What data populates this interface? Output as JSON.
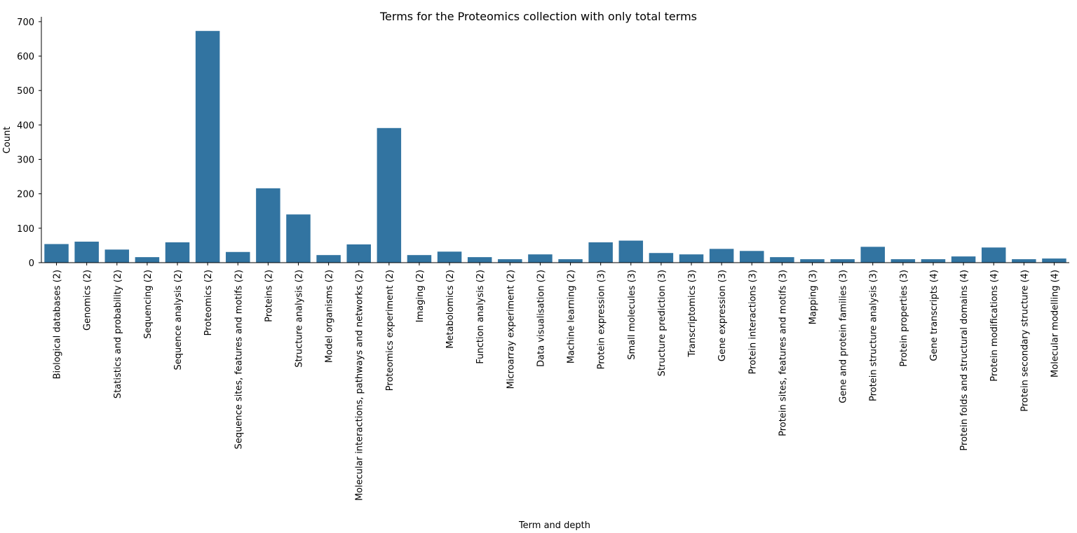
{
  "chart_data": {
    "type": "bar",
    "title": "Terms for the Proteomics collection with only total terms",
    "xlabel": "Term and depth",
    "ylabel": "Count",
    "ylim": [
      0,
      710
    ],
    "yticks": [
      0,
      100,
      200,
      300,
      400,
      500,
      600,
      700
    ],
    "grid": false,
    "bar_color": "#3274a1",
    "categories": [
      "Biological databases (2)",
      "Genomics (2)",
      "Statistics and probability (2)",
      "Sequencing (2)",
      "Sequence analysis (2)",
      "Proteomics (2)",
      "Sequence sites, features and motifs (2)",
      "Proteins (2)",
      "Structure analysis (2)",
      "Model organisms (2)",
      "Molecular interactions, pathways and networks (2)",
      "Proteomics experiment (2)",
      "Imaging (2)",
      "Metabolomics (2)",
      "Function analysis (2)",
      "Microarray experiment (2)",
      "Data visualisation (2)",
      "Machine learning (2)",
      "Protein expression (3)",
      "Small molecules (3)",
      "Structure prediction (3)",
      "Transcriptomics (3)",
      "Gene expression (3)",
      "Protein interactions (3)",
      "Protein sites, features and motifs (3)",
      "Mapping (3)",
      "Gene and protein families (3)",
      "Protein structure analysis (3)",
      "Protein properties (3)",
      "Gene transcripts (4)",
      "Protein folds and structural domains (4)",
      "Protein modifications (4)",
      "Protein secondary structure (4)",
      "Molecular modelling (4)"
    ],
    "values": [
      54,
      61,
      38,
      16,
      59,
      673,
      31,
      216,
      140,
      22,
      53,
      391,
      22,
      32,
      16,
      10,
      24,
      10,
      59,
      64,
      28,
      24,
      40,
      34,
      16,
      10,
      10,
      46,
      10,
      10,
      18,
      44,
      10,
      12
    ]
  }
}
